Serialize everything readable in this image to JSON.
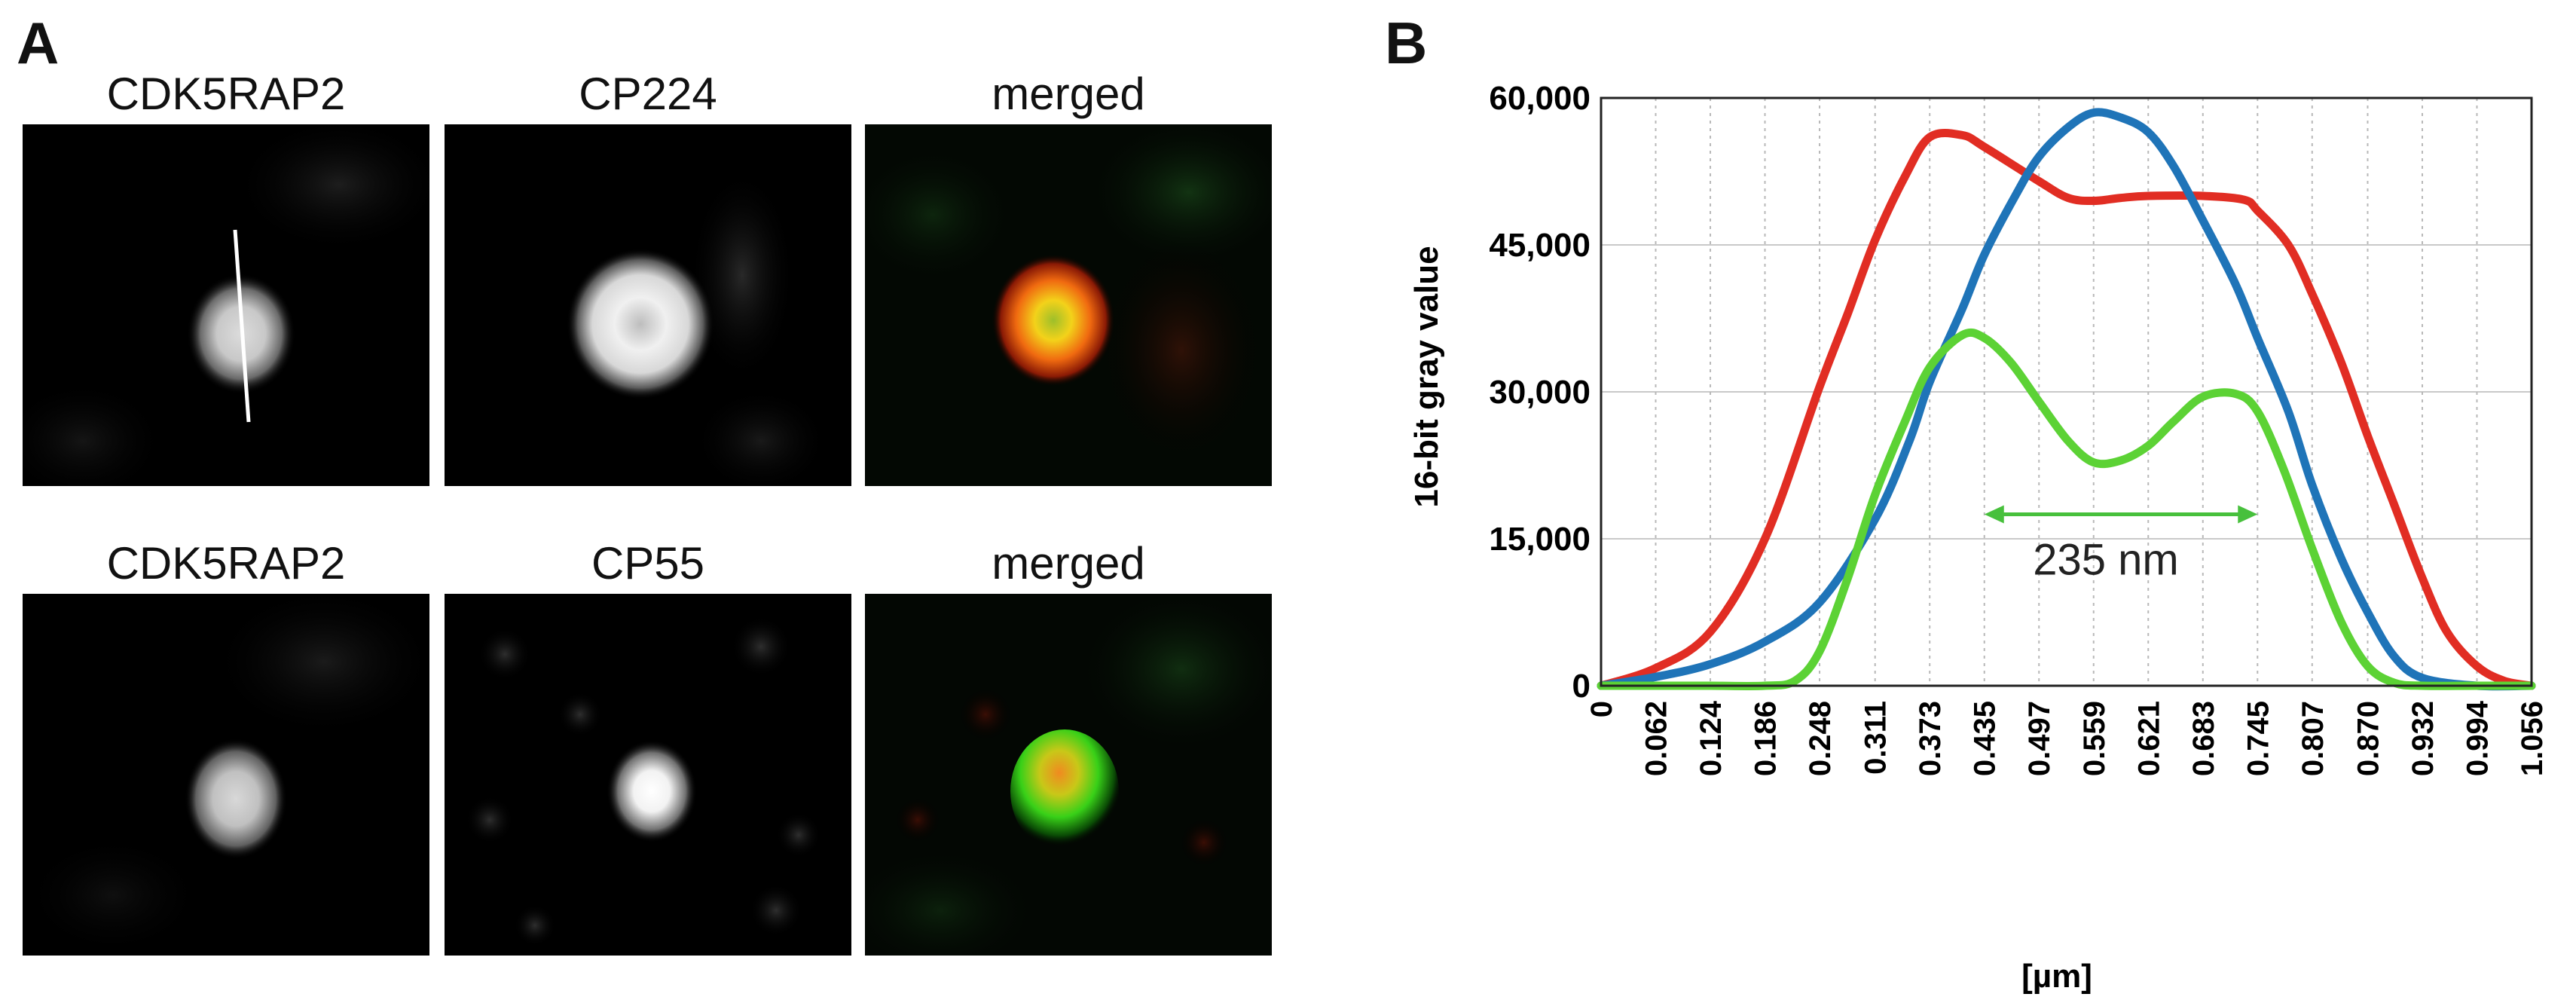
{
  "figure": {
    "panel_a": {
      "letter": "A",
      "rows": [
        {
          "titles": [
            "CDK5RAP2",
            "CP224",
            "merged"
          ]
        },
        {
          "titles": [
            "CDK5RAP2",
            "CP55",
            "merged"
          ]
        }
      ]
    },
    "panel_b": {
      "letter": "B"
    }
  },
  "chart_data": {
    "type": "line",
    "title": "",
    "xlabel": "[µm]",
    "ylabel": "16-bit gray value",
    "xlim": [
      0,
      1.056
    ],
    "ylim": [
      0,
      60000
    ],
    "x_ticks": [
      "0",
      "0.062",
      "0.124",
      "0.186",
      "0.248",
      "0.311",
      "0.373",
      "0.435",
      "0.497",
      "0.559",
      "0.621",
      "0.683",
      "0.745",
      "0.807",
      "0.870",
      "0.932",
      "0.994",
      "1.056"
    ],
    "y_ticks": [
      "0",
      "15,000",
      "30,000",
      "45,000",
      "60,000"
    ],
    "grid": "vertical dotted, horizontal solid",
    "annotation": {
      "text": "235 nm",
      "from": 0.435,
      "to": 0.745,
      "y": 17500,
      "color": "#47c03c"
    },
    "series": [
      {
        "name": "red",
        "color": "#e12d23",
        "x": [
          0,
          0.062,
          0.124,
          0.186,
          0.248,
          0.28,
          0.311,
          0.345,
          0.373,
          0.41,
          0.435,
          0.497,
          0.53,
          0.559,
          0.59,
          0.621,
          0.683,
          0.73,
          0.745,
          0.78,
          0.807,
          0.84,
          0.87,
          0.9,
          0.932,
          0.96,
          0.994,
          1.025,
          1.056
        ],
        "y": [
          0,
          1800,
          5500,
          15000,
          30500,
          38000,
          45500,
          52000,
          56000,
          56200,
          55000,
          51500,
          49800,
          49500,
          49800,
          50000,
          50000,
          49600,
          48500,
          45000,
          40000,
          33000,
          25500,
          18500,
          11000,
          5500,
          2000,
          500,
          0
        ]
      },
      {
        "name": "blue",
        "color": "#1f74b8",
        "x": [
          0,
          0.062,
          0.124,
          0.186,
          0.248,
          0.311,
          0.35,
          0.373,
          0.41,
          0.435,
          0.47,
          0.497,
          0.53,
          0.559,
          0.59,
          0.621,
          0.65,
          0.683,
          0.72,
          0.745,
          0.78,
          0.807,
          0.84,
          0.87,
          0.9,
          0.932,
          0.994,
          1.056
        ],
        "y": [
          0,
          900,
          2200,
          4500,
          8500,
          17000,
          25000,
          31000,
          38500,
          44000,
          50000,
          54000,
          57000,
          58500,
          58000,
          56500,
          53000,
          47500,
          41000,
          35500,
          28000,
          20500,
          13000,
          7500,
          3000,
          800,
          0,
          0
        ]
      },
      {
        "name": "green",
        "color": "#5cd235",
        "x": [
          0,
          0.062,
          0.124,
          0.186,
          0.22,
          0.248,
          0.28,
          0.311,
          0.345,
          0.373,
          0.41,
          0.435,
          0.465,
          0.497,
          0.53,
          0.559,
          0.59,
          0.621,
          0.65,
          0.683,
          0.72,
          0.745,
          0.775,
          0.807,
          0.84,
          0.87,
          0.9,
          0.932,
          0.994,
          1.056
        ],
        "y": [
          0,
          0,
          0,
          0,
          500,
          3500,
          11000,
          19500,
          27000,
          32500,
          35800,
          35500,
          33000,
          29000,
          25000,
          22800,
          23000,
          24500,
          27000,
          29500,
          29800,
          28000,
          22000,
          14000,
          6500,
          2000,
          300,
          0,
          0,
          0
        ]
      }
    ]
  }
}
